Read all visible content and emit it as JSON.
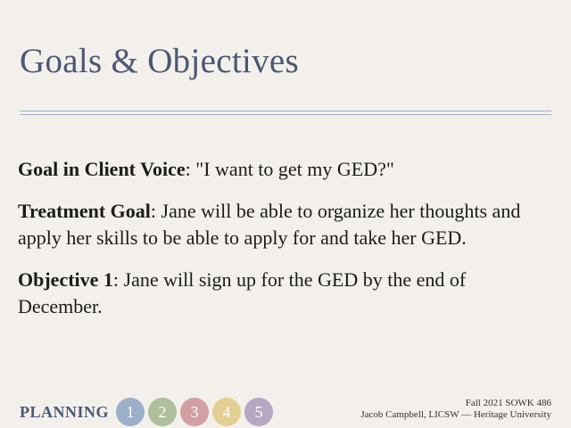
{
  "slide": {
    "title": "Goals & Objectives",
    "paragraphs": [
      {
        "label": "Goal in Client Voice",
        "text": ": \"I want to get my GED?\""
      },
      {
        "label": "Treatment Goal",
        "text": ": Jane will be able to organize her thoughts and apply her skills to be able to apply for and take her GED."
      },
      {
        "label": "Objective 1",
        "text": ": Jane will sign up for the GED by the end of December."
      }
    ],
    "footer": {
      "section": "PLANNING",
      "steps": [
        {
          "label": "1",
          "color": "#9bb0c8"
        },
        {
          "label": "2",
          "color": "#aebf9b"
        },
        {
          "label": "3",
          "color": "#d2a0a3"
        },
        {
          "label": "4",
          "color": "#e4cf93"
        },
        {
          "label": "5",
          "color": "#b7a7c2"
        }
      ],
      "course": "Fall 2021 SOWK 486",
      "author": "Jacob Campbell, LICSW — Heritage University"
    }
  }
}
